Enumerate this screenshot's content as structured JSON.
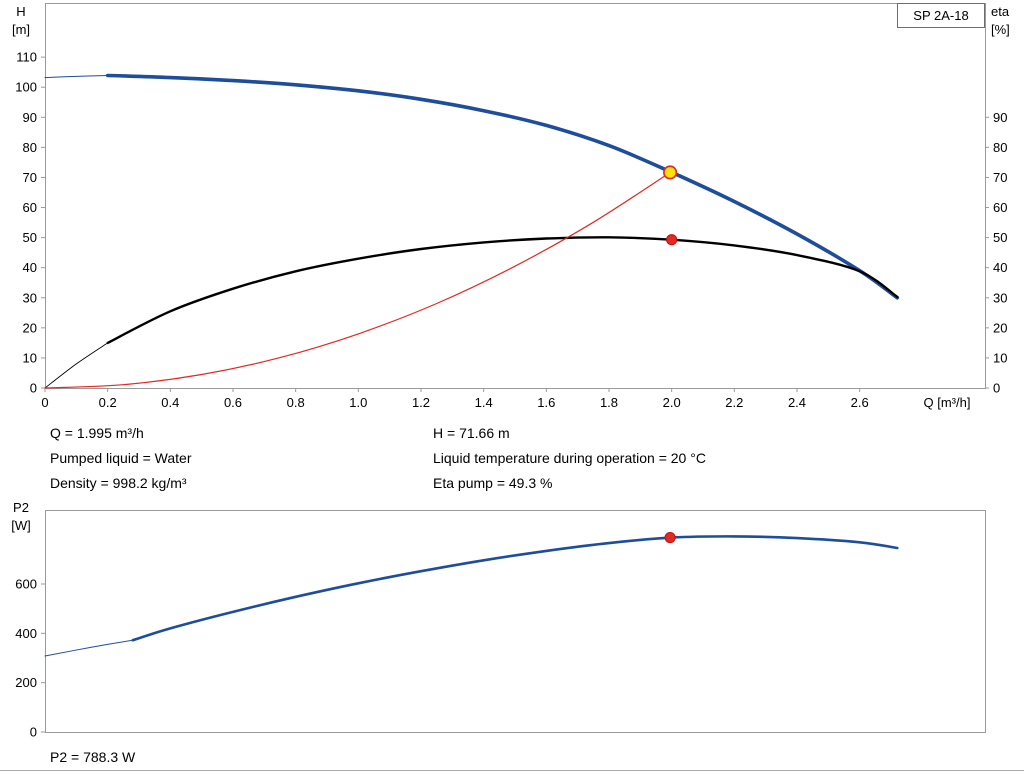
{
  "header": {
    "pump_model": "SP 2A-18"
  },
  "info_panel": {
    "q": "Q = 1.995 m³/h",
    "pumped_liquid": "Pumped liquid = Water",
    "density": "Density = 998.2 kg/m³",
    "h": "H = 71.66 m",
    "liquid_temp": "Liquid temperature during operation = 20 °C",
    "eta_pump": "Eta pump = 49.3 %"
  },
  "p2_readout": "P2 = 788.3 W",
  "chart_data": [
    {
      "id": "hq-chart",
      "type": "line",
      "title": "SP 2A-18",
      "xlabel": "Q [m³/h]",
      "ylabel_left": [
        "H",
        "[m]"
      ],
      "ylabel_right": [
        "eta",
        "[%]"
      ],
      "xlim": [
        0,
        3.0
      ],
      "ylim": [
        0,
        128
      ],
      "grid": false,
      "legend_position": "none",
      "x_ticks": [
        0,
        0.2,
        0.4,
        0.6,
        0.8,
        1.0,
        1.2,
        1.4,
        1.6,
        1.8,
        2.0,
        2.2,
        2.4,
        2.6
      ],
      "x_tick_labels": [
        "0",
        "0.2",
        "0.4",
        "0.6",
        "0.8",
        "1.0",
        "1.2",
        "1.4",
        "1.6",
        "1.8",
        "2.0",
        "2.2",
        "2.4",
        "2.6"
      ],
      "y_ticks_left": [
        0,
        10,
        20,
        30,
        40,
        50,
        60,
        70,
        80,
        90,
        100,
        110
      ],
      "y_ticks_right": [
        0,
        10,
        20,
        30,
        40,
        50,
        60,
        70,
        80,
        90
      ],
      "series": [
        {
          "name": "pump-curve-leadin",
          "label": "H pump curve (lead-in)",
          "color": "#1d4d9b",
          "width": 1,
          "points": [
            [
              0,
              103.2
            ],
            [
              0.1,
              103.6
            ],
            [
              0.2,
              103.9
            ]
          ]
        },
        {
          "name": "pump-curve",
          "label": "H pump curve",
          "color": "#1d4d9b",
          "width": 3.6,
          "points": [
            [
              0.2,
              103.9
            ],
            [
              0.4,
              103.2
            ],
            [
              0.6,
              102.2
            ],
            [
              0.8,
              100.8
            ],
            [
              1.0,
              98.8
            ],
            [
              1.2,
              96.0
            ],
            [
              1.4,
              92.2
            ],
            [
              1.6,
              87.3
            ],
            [
              1.8,
              80.6
            ],
            [
              2.0,
              71.7
            ],
            [
              2.2,
              62.0
            ],
            [
              2.4,
              51.2
            ],
            [
              2.6,
              39.0
            ],
            [
              2.72,
              30.0
            ]
          ]
        },
        {
          "name": "eta-curve-leadin",
          "label": "Eta curve (lead-in)",
          "color": "#000000",
          "width": 0.9,
          "points": [
            [
              0,
              0
            ],
            [
              0.1,
              8.0
            ],
            [
              0.2,
              15.0
            ]
          ]
        },
        {
          "name": "eta-curve",
          "label": "Eta curve",
          "color": "#000000",
          "width": 2.4,
          "points": [
            [
              0.2,
              15.0
            ],
            [
              0.4,
              25.5
            ],
            [
              0.6,
              33.0
            ],
            [
              0.8,
              38.8
            ],
            [
              1.0,
              43.0
            ],
            [
              1.2,
              46.2
            ],
            [
              1.4,
              48.4
            ],
            [
              1.6,
              49.7
            ],
            [
              1.8,
              50.1
            ],
            [
              2.0,
              49.3
            ],
            [
              2.2,
              47.4
            ],
            [
              2.4,
              44.2
            ],
            [
              2.6,
              38.8
            ],
            [
              2.72,
              30.3
            ]
          ]
        },
        {
          "name": "system-curve",
          "label": "System curve",
          "color": "#e02a23",
          "width": 1.2,
          "points": [
            [
              0,
              0
            ],
            [
              0.25,
              1.1
            ],
            [
              0.5,
              4.5
            ],
            [
              0.75,
              10.1
            ],
            [
              1.0,
              18.0
            ],
            [
              1.25,
              28.1
            ],
            [
              1.5,
              40.5
            ],
            [
              1.75,
              55.1
            ],
            [
              1.995,
              71.66
            ]
          ]
        }
      ],
      "markers": [
        {
          "name": "duty-point",
          "x": 1.995,
          "y": 71.66,
          "r": 6.2,
          "fill": "#ffe10a",
          "stroke": "#e02a23",
          "stroke_width": 1.7
        },
        {
          "name": "eta-operating-point",
          "x": 2.0,
          "y": 49.3,
          "r": 5.1,
          "fill": "#e02a23",
          "stroke": "#bf1212",
          "stroke_width": 1
        }
      ]
    },
    {
      "id": "p2-chart",
      "type": "line",
      "title": "",
      "xlabel": "",
      "ylabel_left": [
        "P2",
        "[W]"
      ],
      "xlim": [
        0,
        3.0
      ],
      "ylim": [
        0,
        900
      ],
      "grid": false,
      "legend_position": "none",
      "y_ticks_left": [
        0,
        200,
        400,
        600
      ],
      "series": [
        {
          "name": "p2-curve-leadin",
          "label": "P2 curve (lead-in)",
          "color": "#1d4d9b",
          "width": 1,
          "points": [
            [
              0,
              308
            ],
            [
              0.15,
              344
            ],
            [
              0.28,
              372
            ]
          ]
        },
        {
          "name": "p2-curve",
          "label": "P2 power curve",
          "color": "#1d4d9b",
          "width": 2.6,
          "points": [
            [
              0.28,
              372
            ],
            [
              0.4,
              420
            ],
            [
              0.6,
              487
            ],
            [
              0.8,
              548
            ],
            [
              1.0,
              603
            ],
            [
              1.2,
              652
            ],
            [
              1.4,
              696
            ],
            [
              1.6,
              734
            ],
            [
              1.8,
              766
            ],
            [
              2.0,
              788
            ],
            [
              2.2,
              793
            ],
            [
              2.4,
              786
            ],
            [
              2.6,
              769
            ],
            [
              2.72,
              746
            ]
          ]
        }
      ],
      "markers": [
        {
          "name": "p2-operating-point",
          "x": 1.995,
          "y": 788.3,
          "r": 5.1,
          "fill": "#e02a23",
          "stroke": "#bf1212",
          "stroke_width": 1
        }
      ]
    }
  ]
}
